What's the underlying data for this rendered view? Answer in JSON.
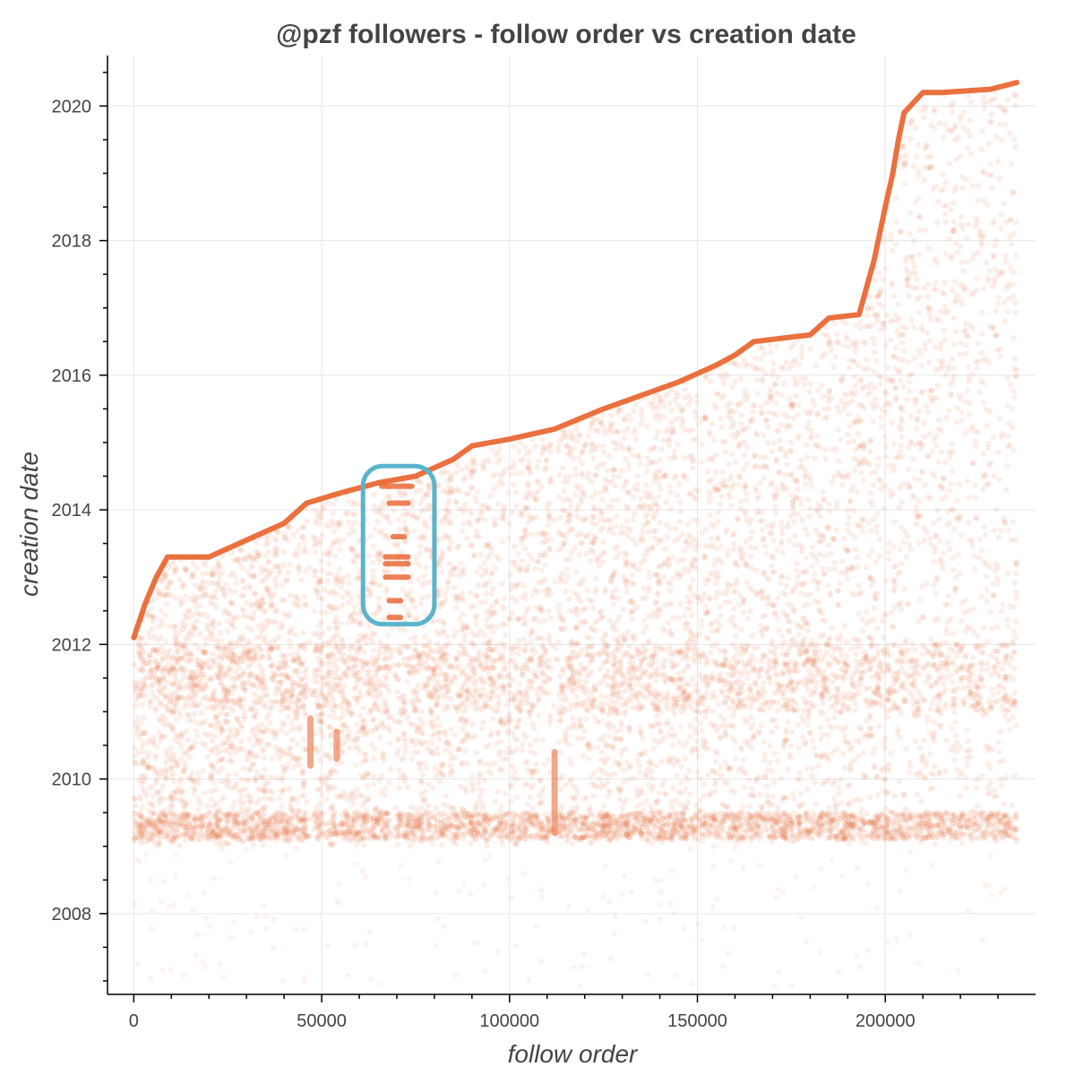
{
  "chart_data": {
    "type": "scatter",
    "title": "@pzf followers - follow order vs creation date",
    "xlabel": "follow order",
    "ylabel": "creation date",
    "xlim": [
      -7000,
      240000
    ],
    "ylim": [
      2006.8,
      2020.75
    ],
    "x_ticks": [
      0,
      50000,
      100000,
      150000,
      200000
    ],
    "x_tick_labels": [
      "0",
      "50000",
      "100000",
      "150000",
      "200000"
    ],
    "y_ticks": [
      2008,
      2010,
      2012,
      2014,
      2016,
      2018,
      2020
    ],
    "y_tick_labels": [
      "2008",
      "2010",
      "2012",
      "2014",
      "2016",
      "2018",
      "2020"
    ],
    "grid": true,
    "marker_color": "#e8622a",
    "highlight_color": "#5ab4cc",
    "upper_envelope": {
      "x": [
        0,
        3000,
        6000,
        9000,
        20000,
        30000,
        40000,
        46000,
        55000,
        65000,
        75000,
        85000,
        90000,
        100000,
        112000,
        125000,
        135000,
        145000,
        155000,
        160000,
        165000,
        180000,
        185000,
        193000,
        197000,
        200000,
        202000,
        203500,
        205000,
        210000,
        215000,
        228000,
        235000
      ],
      "y": [
        2012.1,
        2012.6,
        2013.0,
        2013.3,
        2013.3,
        2013.55,
        2013.8,
        2014.1,
        2014.25,
        2014.4,
        2014.5,
        2014.75,
        2014.95,
        2015.05,
        2015.2,
        2015.5,
        2015.7,
        2015.9,
        2016.15,
        2016.3,
        2016.5,
        2016.6,
        2016.85,
        2016.9,
        2017.7,
        2018.5,
        2019.0,
        2019.5,
        2019.9,
        2020.2,
        2020.2,
        2020.25,
        2020.35
      ]
    },
    "dense_bands": [
      {
        "y_min": 2009.1,
        "y_max": 2009.5,
        "density": "high"
      },
      {
        "y_min": 2011.0,
        "y_max": 2012.0,
        "density": "medium"
      }
    ],
    "highlighted_region": {
      "x_min": 61000,
      "x_max": 80000,
      "y_min": 2012.3,
      "y_max": 2014.65
    },
    "highlight_streaks": [
      {
        "x0": 66000,
        "x1": 74000,
        "y": 2014.35
      },
      {
        "x0": 68000,
        "x1": 73000,
        "y": 2014.1
      },
      {
        "x0": 69000,
        "x1": 72000,
        "y": 2013.6
      },
      {
        "x0": 67000,
        "x1": 73000,
        "y": 2013.3
      },
      {
        "x0": 67000,
        "x1": 73000,
        "y": 2013.2
      },
      {
        "x0": 67000,
        "x1": 73000,
        "y": 2013.0
      },
      {
        "x0": 68000,
        "x1": 71000,
        "y": 2012.65
      },
      {
        "x0": 68000,
        "x1": 71000,
        "y": 2012.4
      }
    ],
    "vertical_gaps": [
      47000,
      69000,
      112000
    ],
    "vertical_streaks": [
      {
        "x": 112000,
        "y0": 2009.2,
        "y1": 2010.4
      },
      {
        "x": 47000,
        "y0": 2010.2,
        "y1": 2010.9
      },
      {
        "x": 54000,
        "y0": 2010.3,
        "y1": 2010.7
      }
    ]
  }
}
